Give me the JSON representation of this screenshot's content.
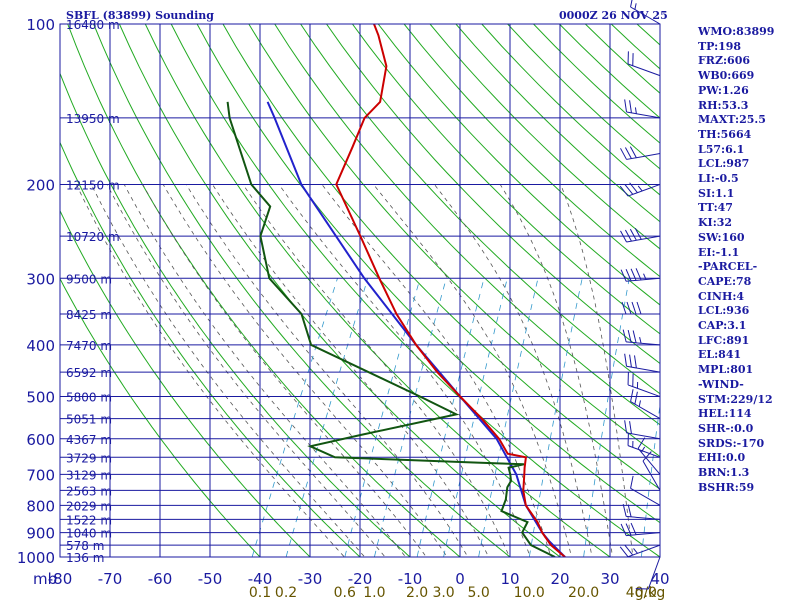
{
  "header": {
    "station": "SBFL (83899) Sounding",
    "valid_time": "0000Z 26 NOV 25"
  },
  "indices": [
    "WMO:83899",
    "TP:198",
    "FRZ:606",
    "WB0:669",
    "PW:1.26",
    "RH:53.3",
    "MAXT:25.5",
    "TH:5664",
    "L57:6.1",
    "LCL:987",
    "LI:-0.5",
    "SI:1.1",
    "TT:47",
    "KI:32",
    "SW:160",
    "EI:-1.1",
    "-PARCEL-",
    "CAPE:78",
    "CINH:4",
    "LCL:936",
    "CAP:3.1",
    "LFC:891",
    "EL:841",
    "MPL:801",
    "-WIND-",
    "STM:229/12",
    "HEL:114",
    "SHR-:0.0",
    "SRDS:-170",
    "EHI:0.0",
    "BRN:1.3",
    "BSHR:59"
  ],
  "colors": {
    "frame": "#1a1aa0",
    "dry_adiabat": "#22aa22",
    "moist_adiabat": "#555555",
    "mixing_ratio": "#3399cc",
    "temperature": "#cc0000",
    "dewpoint": "#115511",
    "parcel": "#2222cc",
    "wind_barb": "#1a1aa0"
  },
  "chart_data": {
    "type": "skew-t",
    "pressure_axis": {
      "unit": "mb",
      "scale": "log",
      "range": [
        1000,
        100
      ],
      "ticks": [
        1000,
        900,
        800,
        700,
        600,
        500,
        400,
        300,
        200,
        100
      ]
    },
    "temperature_axis": {
      "range": [
        -80,
        40
      ],
      "ticks": [
        -80,
        -70,
        -60,
        -50,
        -40,
        -30,
        -20,
        -10,
        0,
        10,
        20,
        30,
        40
      ]
    },
    "height_labels": [
      {
        "p": 1000,
        "label": "136 m"
      },
      {
        "p": 950,
        "label": "578 m"
      },
      {
        "p": 900,
        "label": "1040 m"
      },
      {
        "p": 850,
        "label": "1522 m"
      },
      {
        "p": 800,
        "label": "2029 m"
      },
      {
        "p": 750,
        "label": "2563 m"
      },
      {
        "p": 700,
        "label": "3129 m"
      },
      {
        "p": 650,
        "label": "3729 m"
      },
      {
        "p": 600,
        "label": "4367 m"
      },
      {
        "p": 550,
        "label": "5051 m"
      },
      {
        "p": 500,
        "label": "5800 m"
      },
      {
        "p": 450,
        "label": "6592 m"
      },
      {
        "p": 400,
        "label": "7470 m"
      },
      {
        "p": 350,
        "label": "8425 m"
      },
      {
        "p": 300,
        "label": "9500 m"
      },
      {
        "p": 250,
        "label": "10720 m"
      },
      {
        "p": 200,
        "label": "12150 m"
      },
      {
        "p": 150,
        "label": "13950 m"
      },
      {
        "p": 100,
        "label": "16480 m"
      }
    ],
    "mixing_ratio_labels": [
      "0.1",
      "0.2",
      "0.6",
      "1.0",
      "2.0",
      "3.0",
      "5.0",
      "10.0",
      "20.0",
      "40.0",
      "g/kg"
    ],
    "mixing_ratio_values": [
      0.1,
      0.2,
      0.6,
      1.0,
      2.0,
      3.0,
      5.0,
      10.0,
      20.0,
      40.0
    ],
    "temperature": [
      [
        1000,
        21
      ],
      [
        950,
        17
      ],
      [
        900,
        14
      ],
      [
        860,
        12
      ],
      [
        800,
        8
      ],
      [
        750,
        6
      ],
      [
        700,
        4.6
      ],
      [
        680,
        4.0
      ],
      [
        650,
        3.2
      ],
      [
        640,
        -0.8
      ],
      [
        600,
        -4
      ],
      [
        550,
        -9.5
      ],
      [
        500,
        -16
      ],
      [
        450,
        -23
      ],
      [
        400,
        -30
      ],
      [
        350,
        -37
      ],
      [
        300,
        -44
      ],
      [
        250,
        -52
      ],
      [
        200,
        -62
      ],
      [
        170,
        -62.5
      ],
      [
        150,
        -63
      ],
      [
        140,
        -61.5
      ],
      [
        120,
        -63.8
      ],
      [
        105,
        -68.5
      ],
      [
        100,
        -70.5
      ]
    ],
    "dewpoint": [
      [
        1000,
        19
      ],
      [
        950,
        13
      ],
      [
        900,
        10
      ],
      [
        860,
        10
      ],
      [
        820,
        3.7
      ],
      [
        780,
        3.4
      ],
      [
        740,
        2.5
      ],
      [
        720,
        2.6
      ],
      [
        700,
        1.8
      ],
      [
        680,
        0.8
      ],
      [
        670,
        3.5
      ],
      [
        665,
        -6
      ],
      [
        650,
        -35
      ],
      [
        620,
        -41
      ],
      [
        590,
        -32
      ],
      [
        540,
        -15
      ],
      [
        500,
        -24
      ],
      [
        400,
        -51
      ],
      [
        350,
        -56
      ],
      [
        300,
        -66
      ],
      [
        250,
        -72
      ],
      [
        220,
        -73
      ],
      [
        200,
        -79
      ],
      [
        150,
        -90
      ],
      [
        140,
        -92
      ]
    ],
    "parcel": [
      [
        1000,
        21
      ],
      [
        936,
        16.4
      ],
      [
        900,
        14
      ],
      [
        800,
        8
      ],
      [
        700,
        3
      ],
      [
        600,
        -4.5
      ],
      [
        500,
        -16
      ],
      [
        400,
        -30
      ],
      [
        300,
        -47
      ],
      [
        200,
        -69
      ],
      [
        150,
        -81
      ],
      [
        140,
        -84
      ]
    ],
    "wind": [
      {
        "p": 1000,
        "dir": 200,
        "speed": 10
      },
      {
        "p": 950,
        "dir": 250,
        "speed": 25
      },
      {
        "p": 900,
        "dir": 265,
        "speed": 30
      },
      {
        "p": 850,
        "dir": 275,
        "speed": 20
      },
      {
        "p": 800,
        "dir": 300,
        "speed": 10
      },
      {
        "p": 750,
        "dir": 330,
        "speed": 10
      },
      {
        "p": 700,
        "dir": 320,
        "speed": 15
      },
      {
        "p": 650,
        "dir": 290,
        "speed": 15
      },
      {
        "p": 600,
        "dir": 280,
        "speed": 20
      },
      {
        "p": 550,
        "dir": 300,
        "speed": 25
      },
      {
        "p": 500,
        "dir": 290,
        "speed": 25
      },
      {
        "p": 450,
        "dir": 280,
        "speed": 30
      },
      {
        "p": 400,
        "dir": 275,
        "speed": 35
      },
      {
        "p": 350,
        "dir": 270,
        "speed": 40
      },
      {
        "p": 300,
        "dir": 265,
        "speed": 45
      },
      {
        "p": 250,
        "dir": 260,
        "speed": 40
      },
      {
        "p": 200,
        "dir": 250,
        "speed": 35
      },
      {
        "p": 175,
        "dir": 260,
        "speed": 30
      },
      {
        "p": 150,
        "dir": 280,
        "speed": 25
      },
      {
        "p": 125,
        "dir": 290,
        "speed": 20
      },
      {
        "p": 100,
        "dir": 300,
        "speed": 15
      }
    ]
  }
}
